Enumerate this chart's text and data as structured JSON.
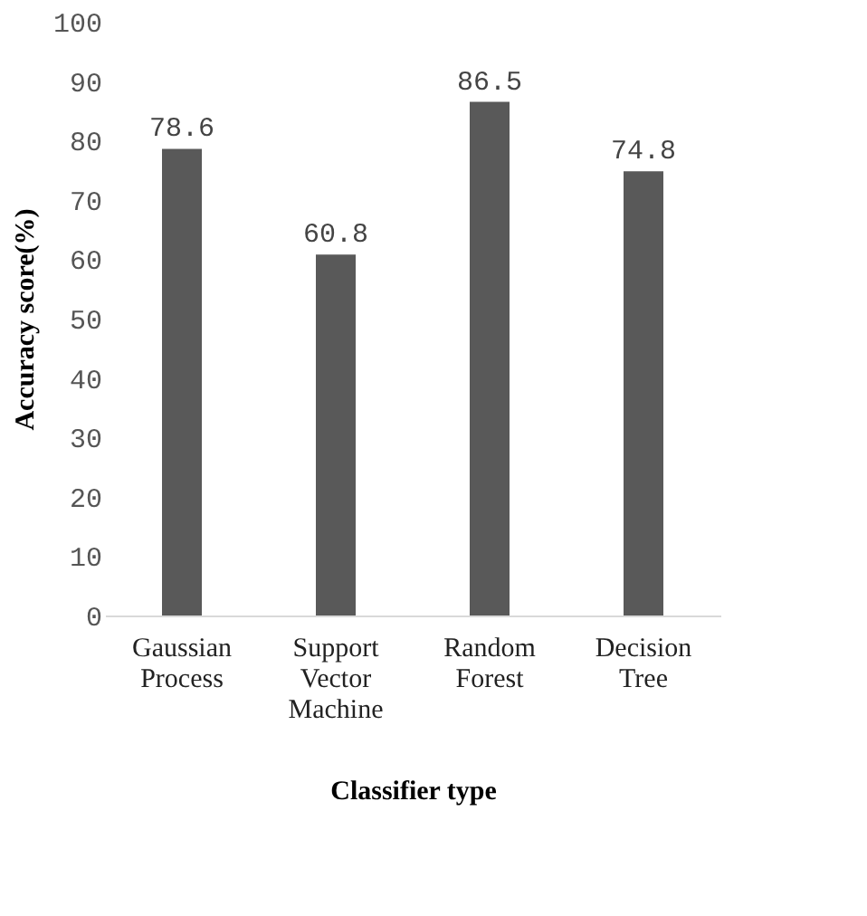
{
  "chart_data": {
    "type": "bar",
    "xlabel": "Classifier type",
    "ylabel": "Accuracy score(%)",
    "categories": [
      "Gaussian Process",
      "Support Vector Machine",
      "Random Forest",
      "Decision Tree"
    ],
    "values": [
      78.6,
      60.8,
      86.5,
      74.8
    ],
    "color": "#595959",
    "ylim": [
      0,
      100
    ],
    "yticks": [
      0,
      10,
      20,
      30,
      40,
      50,
      60,
      70,
      80,
      90,
      100
    ],
    "grid": false,
    "data_labels": true
  }
}
